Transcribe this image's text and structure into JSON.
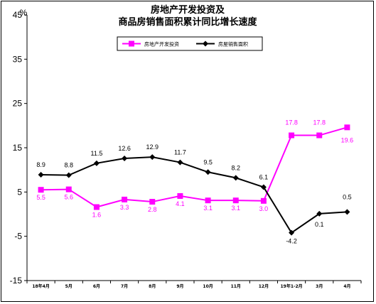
{
  "chart_data": {
    "type": "line",
    "title_lines": [
      "房地产开发投资及",
      "商品房销售面积累计同比增长速度"
    ],
    "ylabel": "%",
    "ylim": [
      -15,
      45
    ],
    "yticks": [
      45,
      35,
      25,
      15,
      5,
      -5,
      -15
    ],
    "categories": [
      "18年4月",
      "5月",
      "6月",
      "7月",
      "8月",
      "9月",
      "10月",
      "11月",
      "12月",
      "19年1-2月",
      "3月",
      "4月"
    ],
    "series": [
      {
        "name": "房地产开发投资",
        "color": "#ff00ff",
        "marker": "square",
        "values": [
          5.5,
          5.6,
          1.6,
          3.3,
          2.8,
          4.1,
          3.1,
          3.1,
          3.0,
          17.8,
          17.8,
          19.6
        ],
        "labels": [
          "5.5",
          "5.6",
          "1.6",
          "3.3",
          "2.8",
          "4.1",
          "3.1",
          "3.1",
          "3.0",
          "17.8",
          "17.8",
          "19.6"
        ]
      },
      {
        "name": "房屋销售面积",
        "color": "#000000",
        "marker": "diamond",
        "values": [
          8.9,
          8.8,
          11.5,
          12.6,
          12.9,
          11.7,
          9.5,
          8.2,
          6.1,
          -4.2,
          0.1,
          0.5
        ],
        "labels": [
          "8.9",
          "8.8",
          "11.5",
          "12.6",
          "12.9",
          "11.7",
          "9.5",
          "8.2",
          "6.1",
          "-4.2",
          "0.1",
          "0.5"
        ]
      }
    ],
    "legend_position": "top-center",
    "grid": false
  }
}
